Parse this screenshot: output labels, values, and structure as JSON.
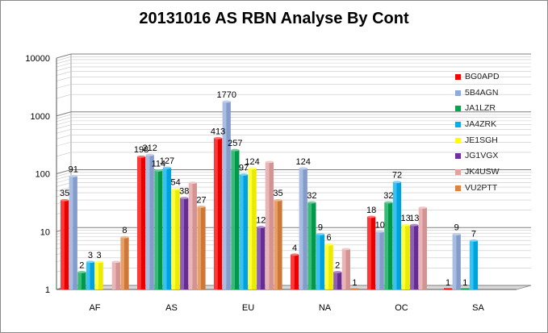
{
  "chart_data": {
    "type": "bar",
    "title": "20131016  AS RBN Analyse By Cont",
    "categories": [
      "AF",
      "AS",
      "EU",
      "NA",
      "OC",
      "SA"
    ],
    "y_scale": "log",
    "ylim": [
      1,
      10000
    ],
    "y_ticks": [
      "1",
      "10",
      "100",
      "1000",
      "10000"
    ],
    "grid": true,
    "legend_position": "right",
    "series": [
      {
        "name": "BG0APD",
        "color": "#ff0000",
        "values": [
          35,
          198,
          413,
          4,
          18,
          1
        ],
        "labels": [
          "35",
          "198",
          "413",
          "4",
          "18",
          "1"
        ]
      },
      {
        "name": "5B4AGN",
        "color": "#8eaadb",
        "values": [
          91,
          212,
          1770,
          124,
          10,
          9
        ],
        "labels": [
          "91",
          "212",
          "1770",
          "124",
          "10",
          "9"
        ]
      },
      {
        "name": "JA1LZR",
        "color": "#00a651",
        "values": [
          2,
          114,
          257,
          32,
          32,
          1
        ],
        "labels": [
          "2",
          "114",
          "257",
          "32",
          "32",
          "1"
        ]
      },
      {
        "name": "JA4ZRK",
        "color": "#00b0f0",
        "values": [
          3,
          127,
          97,
          9,
          72,
          7
        ],
        "labels": [
          "3",
          "127",
          "97",
          "9",
          "72",
          "7"
        ]
      },
      {
        "name": "JE1SGH",
        "color": "#ffff00",
        "values": [
          3,
          54,
          124,
          6,
          13,
          null
        ],
        "labels": [
          "3",
          "54",
          "124",
          "6",
          "13",
          ""
        ]
      },
      {
        "name": "JG1VGX",
        "color": "#7030a0",
        "values": [
          null,
          38,
          12,
          2,
          13,
          null
        ],
        "labels": [
          "",
          "38",
          "12",
          "2",
          "13",
          ""
        ]
      },
      {
        "name": "JK4USW",
        "color": "#e6a0a0",
        "values": [
          3,
          70,
          160,
          5,
          26,
          null
        ],
        "labels": [
          "",
          "",
          "",
          "",
          "",
          ""
        ]
      },
      {
        "name": "VU2PTT",
        "color": "#e0823c",
        "values": [
          8,
          27,
          35,
          1,
          null,
          null
        ],
        "labels": [
          "8",
          "27",
          "35",
          "1",
          "",
          ""
        ]
      }
    ]
  }
}
